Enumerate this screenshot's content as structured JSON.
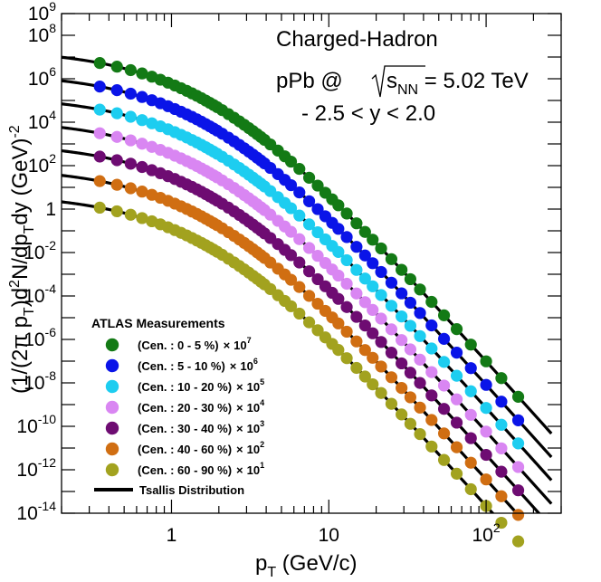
{
  "chart_data": {
    "type": "scatter",
    "title": "Charged-Hadron",
    "annotation_system": "pPb @ ",
    "annotation_sqrt": "s",
    "annotation_sqrt_sub": "NN",
    "annotation_energy": " = 5.02 TeV",
    "annotation_rapidity": "- 2.5 < y < 2.0",
    "xlabel": "p",
    "xlabel_sub": "T",
    "xlabel_unit": " (GeV/c)",
    "ylabel_parts": [
      "(1/(2π p",
      "T",
      ")d",
      "2",
      "N/dp",
      "T",
      "dy (GeV)",
      "-2"
    ],
    "xscale": "log",
    "yscale": "log",
    "xlim": [
      0.2,
      300
    ],
    "ylim": [
      1e-14,
      1000000000.0
    ],
    "x_ticks": [
      {
        "value": 1,
        "base": "1",
        "exp": ""
      },
      {
        "value": 10,
        "base": "10",
        "exp": ""
      },
      {
        "value": 100,
        "base": "10",
        "exp": "2"
      }
    ],
    "y_ticks": [
      {
        "value": 1000000000.0,
        "base": "10",
        "exp": "9"
      },
      {
        "value": 100000000.0,
        "base": "10",
        "exp": "8"
      },
      {
        "value": 1000000.0,
        "base": "10",
        "exp": "6"
      },
      {
        "value": 10000.0,
        "base": "10",
        "exp": "4"
      },
      {
        "value": 100.0,
        "base": "10",
        "exp": "2"
      },
      {
        "value": 1,
        "base": "1",
        "exp": ""
      },
      {
        "value": 0.01,
        "base": "10",
        "exp": "-2"
      },
      {
        "value": 0.0001,
        "base": "10",
        "exp": "-4"
      },
      {
        "value": 1e-06,
        "base": "10",
        "exp": "-6"
      },
      {
        "value": 1e-08,
        "base": "10",
        "exp": "-8"
      },
      {
        "value": 1e-10,
        "base": "10",
        "exp": "-10"
      },
      {
        "value": 1e-12,
        "base": "10",
        "exp": "-12"
      },
      {
        "value": 1e-14,
        "base": "10",
        "exp": "-14"
      }
    ],
    "legend_title": "ATLAS Measurements",
    "legend_position": "bottom-left",
    "x": [
      0.35,
      0.45,
      0.55,
      0.65,
      0.75,
      0.85,
      0.95,
      1.05,
      1.15,
      1.25,
      1.35,
      1.45,
      1.55,
      1.65,
      1.75,
      1.85,
      1.95,
      2.1,
      2.3,
      2.5,
      2.7,
      2.9,
      3.1,
      3.3,
      3.5,
      3.7,
      3.9,
      4.25,
      4.75,
      5.25,
      5.75,
      6.5,
      7.5,
      8.5,
      9.5,
      10.5,
      11.5,
      13,
      15,
      17,
      19,
      21.5,
      25,
      29,
      33,
      38,
      45,
      54,
      65,
      80,
      100,
      125,
      160
    ],
    "series": [
      {
        "name": "(Cen. : 0 - 5 %)",
        "scale_base": "10",
        "scale_exp": "7",
        "color": "#137a15",
        "A": 24100000.0,
        "T": 0.21,
        "n": 8.1
      },
      {
        "name": "(Cen. : 5 - 10 %)",
        "scale_base": "10",
        "scale_exp": "6",
        "color": "#0a14e8",
        "A": 1990000.0,
        "T": 0.21,
        "n": 8.1
      },
      {
        "name": "(Cen. : 10 - 20 %)",
        "scale_base": "10",
        "scale_exp": "5",
        "color": "#1dcdf0",
        "A": 172000.0,
        "T": 0.21,
        "n": 8.1
      },
      {
        "name": "(Cen. : 20 - 30 %)",
        "scale_base": "10",
        "scale_exp": "4",
        "color": "#d986f2",
        "A": 14100.0,
        "T": 0.21,
        "n": 8.1
      },
      {
        "name": "(Cen. : 30 - 40 %)",
        "scale_base": "10",
        "scale_exp": "3",
        "color": "#6e0c72",
        "A": 1190.0,
        "T": 0.21,
        "n": 8.1
      },
      {
        "name": "(Cen. : 40 - 60 %)",
        "scale_base": "10",
        "scale_exp": "2",
        "color": "#d06e12",
        "A": 88,
        "T": 0.21,
        "n": 8.1
      },
      {
        "name": "(Cen. : 60 - 90 %)",
        "scale_base": "10",
        "scale_exp": "1",
        "color": "#a2a21f",
        "A": 5.3,
        "T": 0.21,
        "n": 8.1
      }
    ],
    "fit": {
      "name": "Tsallis Distribution",
      "color": "#000000",
      "x_min": 0.2,
      "x_max": 260
    }
  }
}
